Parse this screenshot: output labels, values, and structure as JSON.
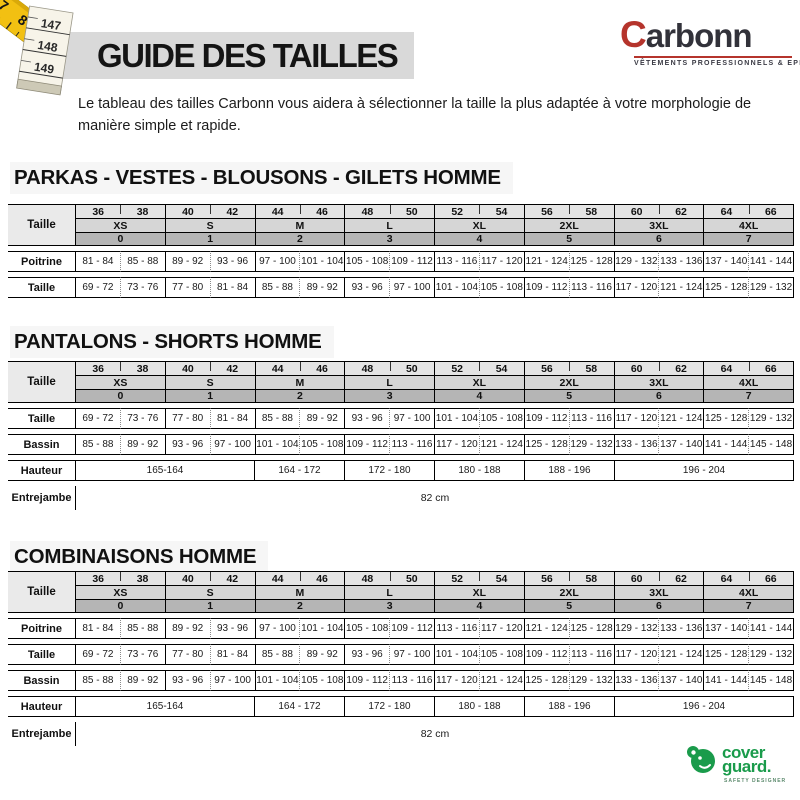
{
  "header": {
    "title": "GUIDE DES TAILLES",
    "brand": {
      "initial": "C",
      "rest": "arbonn",
      "tagline": "VÊTEMENTS PROFESSIONNELS & EPI"
    },
    "intro": "Le tableau des tailles Carbonn vous aidera à sélectionner la taille la plus adaptée à votre morphologie de manière simple et rapide."
  },
  "tape": {
    "yellow_numbers": [
      "7",
      "8"
    ],
    "white_numbers": [
      "147",
      "148",
      "149"
    ]
  },
  "size_header": {
    "label": "Taille",
    "sizes": [
      "36",
      "38",
      "40",
      "42",
      "44",
      "46",
      "48",
      "50",
      "52",
      "54",
      "56",
      "58",
      "60",
      "62",
      "64",
      "66"
    ],
    "groups": [
      {
        "letter": "XS",
        "number": "0"
      },
      {
        "letter": "S",
        "number": "1"
      },
      {
        "letter": "M",
        "number": "2"
      },
      {
        "letter": "L",
        "number": "3"
      },
      {
        "letter": "XL",
        "number": "4"
      },
      {
        "letter": "2XL",
        "number": "5"
      },
      {
        "letter": "3XL",
        "number": "6"
      },
      {
        "letter": "4XL",
        "number": "7"
      }
    ]
  },
  "sections": [
    {
      "title": "PARKAS - VESTES - BLOUSONS - GILETS HOMME",
      "rows": [
        {
          "label": "Poitrine",
          "cells": [
            "81 - 84",
            "85 - 88",
            "89 - 92",
            "93 - 96",
            "97 - 100",
            "101 - 104",
            "105 - 108",
            "109 - 112",
            "113 - 116",
            "117 - 120",
            "121 - 124",
            "125 - 128",
            "129 - 132",
            "133 - 136",
            "137 - 140",
            "141 - 144"
          ]
        },
        {
          "label": "Taille",
          "cells": [
            "69 - 72",
            "73 - 76",
            "77 - 80",
            "81 - 84",
            "85 - 88",
            "89 - 92",
            "93 - 96",
            "97 - 100",
            "101 - 104",
            "105 - 108",
            "109 - 112",
            "113 - 116",
            "117 - 120",
            "121 - 124",
            "125 - 128",
            "129 - 132"
          ]
        }
      ]
    },
    {
      "title": "PANTALONS - SHORTS HOMME",
      "rows": [
        {
          "label": "Taille",
          "cells": [
            "69 - 72",
            "73 - 76",
            "77 - 80",
            "81 - 84",
            "85 - 88",
            "89 - 92",
            "93 - 96",
            "97 - 100",
            "101 - 104",
            "105 - 108",
            "109 - 112",
            "113 - 116",
            "117 - 120",
            "121 - 124",
            "125 - 128",
            "129 - 132"
          ]
        },
        {
          "label": "Bassin",
          "cells": [
            "85 - 88",
            "89 - 92",
            "93 - 96",
            "97 - 100",
            "101 - 104",
            "105 - 108",
            "109 - 112",
            "113 - 116",
            "117 - 120",
            "121 - 124",
            "125 - 128",
            "129 - 132",
            "133 - 136",
            "137 - 140",
            "141 - 144",
            "145 - 148"
          ]
        },
        {
          "label": "Hauteur",
          "spans": [
            {
              "span": 4,
              "text": "165-164"
            },
            {
              "span": 2,
              "text": "164 - 172"
            },
            {
              "span": 2,
              "text": "172 - 180"
            },
            {
              "span": 2,
              "text": "180 - 188"
            },
            {
              "span": 2,
              "text": "188 - 196"
            },
            {
              "span": 4,
              "text": "196 - 204"
            }
          ]
        },
        {
          "label": "Entrejambe",
          "open": true,
          "spans": [
            {
              "span": 16,
              "text": "82 cm"
            }
          ]
        }
      ]
    },
    {
      "title": "COMBINAISONS HOMME",
      "rows": [
        {
          "label": "Poitrine",
          "cells": [
            "81 - 84",
            "85 - 88",
            "89 - 92",
            "93 - 96",
            "97 - 100",
            "101 - 104",
            "105 - 108",
            "109 - 112",
            "113 - 116",
            "117 - 120",
            "121 - 124",
            "125 - 128",
            "129 - 132",
            "133 - 136",
            "137 - 140",
            "141 - 144"
          ]
        },
        {
          "label": "Taille",
          "cells": [
            "69 - 72",
            "73 - 76",
            "77 - 80",
            "81 - 84",
            "85 - 88",
            "89 - 92",
            "93 - 96",
            "97 - 100",
            "101 - 104",
            "105 - 108",
            "109 - 112",
            "113 - 116",
            "117 - 120",
            "121 - 124",
            "125 - 128",
            "129 - 132"
          ]
        },
        {
          "label": "Bassin",
          "cells": [
            "85 - 88",
            "89 - 92",
            "93 - 96",
            "97 - 100",
            "101 - 104",
            "105 - 108",
            "109 - 112",
            "113 - 116",
            "117 - 120",
            "121 - 124",
            "125 - 128",
            "129 - 132",
            "133 - 136",
            "137 - 140",
            "141 - 144",
            "145 - 148"
          ]
        },
        {
          "label": "Hauteur",
          "spans": [
            {
              "span": 4,
              "text": "165-164"
            },
            {
              "span": 2,
              "text": "164 - 172"
            },
            {
              "span": 2,
              "text": "172 - 180"
            },
            {
              "span": 2,
              "text": "180 - 188"
            },
            {
              "span": 2,
              "text": "188 - 196"
            },
            {
              "span": 4,
              "text": "196 - 204"
            }
          ]
        },
        {
          "label": "Entrejambe",
          "open": true,
          "spans": [
            {
              "span": 16,
              "text": "82 cm"
            }
          ]
        }
      ]
    }
  ],
  "footer": {
    "brand_line1": "cover",
    "brand_line2": "guard.",
    "tagline": "SAFETY DESIGNER",
    "green": "#1a9b4b"
  },
  "colors": {
    "title_band": "#d9d9d9",
    "heading_band": "#f6f6f6",
    "header_sizes_bg": "#e4e4e4",
    "header_letters_bg": "#d6d6d6",
    "header_numbers_bg": "#b5b5b5",
    "brand_red": "#b5342c",
    "brand_dark": "#32323a"
  }
}
